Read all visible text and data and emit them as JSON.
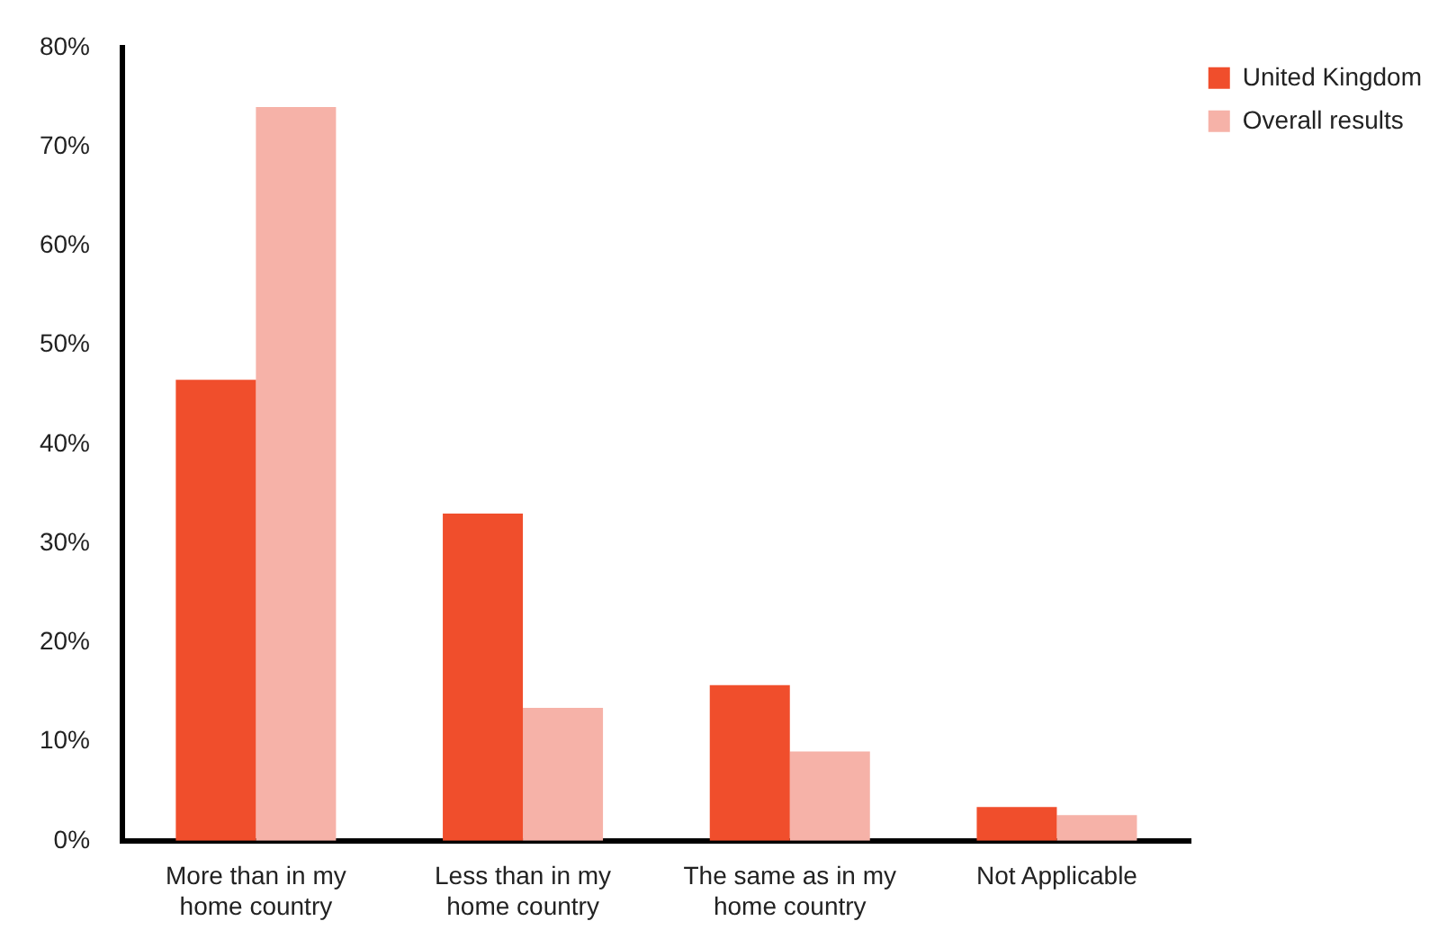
{
  "chart_data": {
    "type": "bar",
    "categories": [
      "More than in my home country",
      "Less than in my home country",
      "The same as in my home country",
      "Not Applicable"
    ],
    "series": [
      {
        "name": "United Kingdom",
        "color": "#f04e2c",
        "values": [
          46.5,
          33,
          15.7,
          3.4
        ]
      },
      {
        "name": "Overall results",
        "color": "#f6b2a8",
        "values": [
          74,
          13.4,
          9,
          2.6
        ]
      }
    ],
    "ylim": [
      0,
      80
    ],
    "yticks": [
      {
        "value": 0,
        "label": "0%"
      },
      {
        "value": 10,
        "label": "10%"
      },
      {
        "value": 20,
        "label": "20%"
      },
      {
        "value": 30,
        "label": "30%"
      },
      {
        "value": 40,
        "label": "40%"
      },
      {
        "value": 50,
        "label": "50%"
      },
      {
        "value": 60,
        "label": "60%"
      },
      {
        "value": 70,
        "label": "70%"
      },
      {
        "value": 80,
        "label": "80%"
      }
    ],
    "grid": false,
    "legend": "top right"
  }
}
